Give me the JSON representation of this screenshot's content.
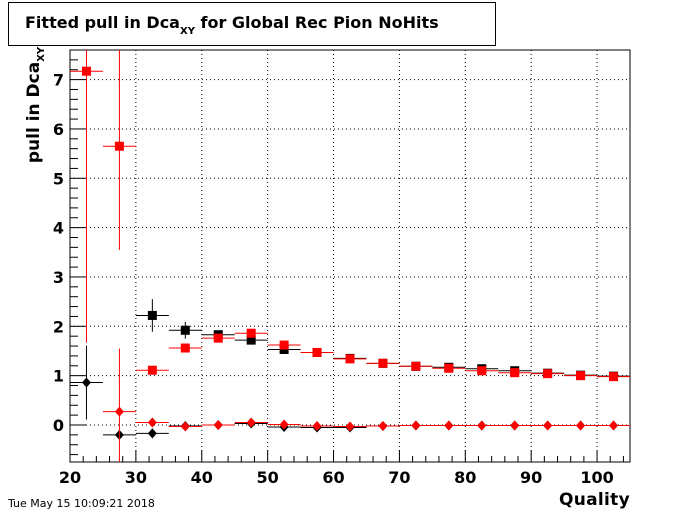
{
  "title": {
    "main": "Fitted pull in Dca",
    "subscript": "XY",
    "rest": " for Global Rec Pion NoHits"
  },
  "ylabel": {
    "main": "pull in Dca",
    "subscript": "XY"
  },
  "xlabel": "Quality",
  "timestamp": "Tue May 15 10:09:21 2018",
  "colors": {
    "series_black": "#000000",
    "series_red": "#ff0000",
    "grid": "#000000"
  },
  "chart_data": {
    "type": "scatter",
    "xlim": [
      20,
      105
    ],
    "ylim": [
      -0.75,
      7.6
    ],
    "grid": true,
    "x_ticks": [
      20,
      30,
      40,
      50,
      60,
      70,
      80,
      90,
      100
    ],
    "y_ticks": [
      0,
      1,
      2,
      3,
      4,
      5,
      6,
      7
    ],
    "bin_half_width": 2.5,
    "series": [
      {
        "marker": "square",
        "color": "#000000",
        "points": [
          {
            "x": 32.5,
            "y": 2.22,
            "err": 0.33
          },
          {
            "x": 37.5,
            "y": 1.92,
            "err": 0.17
          },
          {
            "x": 42.5,
            "y": 1.83,
            "err": 0.07
          },
          {
            "x": 47.5,
            "y": 1.72,
            "err": 0.05
          },
          {
            "x": 52.5,
            "y": 1.53,
            "err": 0.04
          },
          {
            "x": 57.5,
            "y": 1.47,
            "err": 0.03
          },
          {
            "x": 62.5,
            "y": 1.35,
            "err": 0.03
          },
          {
            "x": 67.5,
            "y": 1.25,
            "err": 0.03
          },
          {
            "x": 72.5,
            "y": 1.19,
            "err": 0.02
          },
          {
            "x": 77.5,
            "y": 1.17,
            "err": 0.02
          },
          {
            "x": 82.5,
            "y": 1.14,
            "err": 0.02
          },
          {
            "x": 87.5,
            "y": 1.1,
            "err": 0.02
          },
          {
            "x": 92.5,
            "y": 1.05,
            "err": 0.02
          },
          {
            "x": 97.5,
            "y": 1.01,
            "err": 0.02
          },
          {
            "x": 102.5,
            "y": 0.99,
            "err": 0.02
          }
        ]
      },
      {
        "marker": "square",
        "color": "#ff0000",
        "points": [
          {
            "x": 22.5,
            "y": 7.17,
            "err": 5.5
          },
          {
            "x": 27.5,
            "y": 5.65,
            "err": 2.1
          },
          {
            "x": 32.5,
            "y": 1.11,
            "err": 0.07
          },
          {
            "x": 37.5,
            "y": 1.56,
            "err": 0.06
          },
          {
            "x": 42.5,
            "y": 1.76,
            "err": 0.05
          },
          {
            "x": 47.5,
            "y": 1.86,
            "err": 0.04
          },
          {
            "x": 52.5,
            "y": 1.62,
            "err": 0.04
          },
          {
            "x": 57.5,
            "y": 1.47,
            "err": 0.03
          },
          {
            "x": 62.5,
            "y": 1.34,
            "err": 0.03
          },
          {
            "x": 67.5,
            "y": 1.25,
            "err": 0.03
          },
          {
            "x": 72.5,
            "y": 1.19,
            "err": 0.02
          },
          {
            "x": 77.5,
            "y": 1.15,
            "err": 0.02
          },
          {
            "x": 82.5,
            "y": 1.1,
            "err": 0.02
          },
          {
            "x": 87.5,
            "y": 1.06,
            "err": 0.02
          },
          {
            "x": 92.5,
            "y": 1.04,
            "err": 0.02
          },
          {
            "x": 97.5,
            "y": 1.0,
            "err": 0.02
          },
          {
            "x": 102.5,
            "y": 0.98,
            "err": 0.02
          }
        ]
      },
      {
        "marker": "diamond",
        "color": "#000000",
        "points": [
          {
            "x": 22.5,
            "y": 0.86,
            "err": 0.75
          },
          {
            "x": 27.5,
            "y": -0.2,
            "err": 0.1
          },
          {
            "x": 32.5,
            "y": -0.17,
            "err": 0.1
          },
          {
            "x": 37.5,
            "y": -0.02,
            "err": 0.06
          },
          {
            "x": 42.5,
            "y": 0.0,
            "err": 0.03
          },
          {
            "x": 47.5,
            "y": 0.03,
            "err": 0.03
          },
          {
            "x": 52.5,
            "y": -0.04,
            "err": 0.02
          },
          {
            "x": 57.5,
            "y": -0.05,
            "err": 0.02
          },
          {
            "x": 62.5,
            "y": -0.05,
            "err": 0.02
          },
          {
            "x": 67.5,
            "y": -0.02,
            "err": 0.02
          },
          {
            "x": 72.5,
            "y": -0.01,
            "err": 0.02
          },
          {
            "x": 77.5,
            "y": -0.01,
            "err": 0.02
          },
          {
            "x": 82.5,
            "y": -0.01,
            "err": 0.02
          },
          {
            "x": 87.5,
            "y": -0.01,
            "err": 0.02
          },
          {
            "x": 92.5,
            "y": -0.01,
            "err": 0.02
          },
          {
            "x": 97.5,
            "y": -0.01,
            "err": 0.02
          },
          {
            "x": 102.5,
            "y": -0.01,
            "err": 0.02
          }
        ]
      },
      {
        "marker": "diamond",
        "color": "#ff0000",
        "points": [
          {
            "x": 27.5,
            "y": 0.27,
            "err": 1.28
          },
          {
            "x": 32.5,
            "y": 0.05,
            "err": 0.06
          },
          {
            "x": 37.5,
            "y": -0.03,
            "err": 0.05
          },
          {
            "x": 42.5,
            "y": 0.0,
            "err": 0.04
          },
          {
            "x": 47.5,
            "y": 0.05,
            "err": 0.03
          },
          {
            "x": 52.5,
            "y": 0.01,
            "err": 0.03
          },
          {
            "x": 57.5,
            "y": -0.02,
            "err": 0.02
          },
          {
            "x": 62.5,
            "y": -0.03,
            "err": 0.02
          },
          {
            "x": 67.5,
            "y": -0.02,
            "err": 0.02
          },
          {
            "x": 72.5,
            "y": -0.01,
            "err": 0.02
          },
          {
            "x": 77.5,
            "y": -0.01,
            "err": 0.02
          },
          {
            "x": 82.5,
            "y": -0.01,
            "err": 0.02
          },
          {
            "x": 87.5,
            "y": -0.01,
            "err": 0.02
          },
          {
            "x": 92.5,
            "y": -0.01,
            "err": 0.02
          },
          {
            "x": 97.5,
            "y": -0.01,
            "err": 0.02
          },
          {
            "x": 102.5,
            "y": -0.01,
            "err": 0.02
          }
        ]
      }
    ]
  }
}
